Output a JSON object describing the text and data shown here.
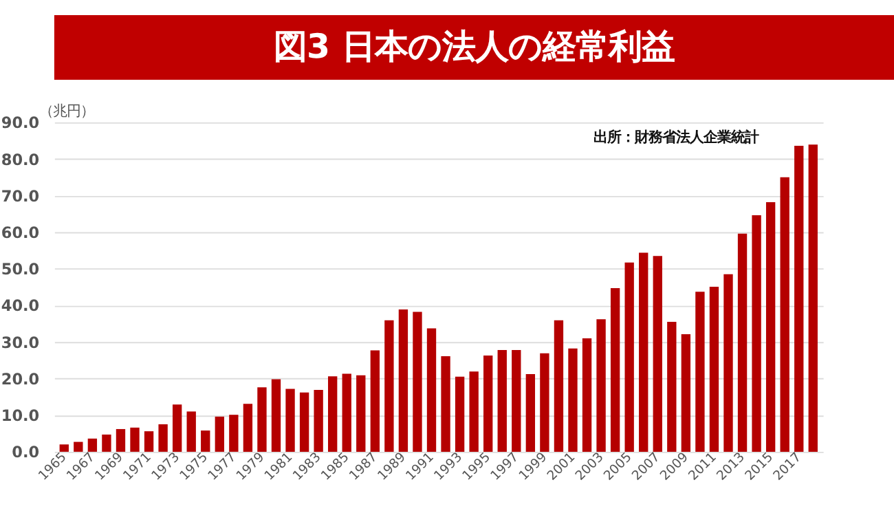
{
  "chart_data": {
    "type": "bar",
    "title": "図3 日本の法人の経常利益",
    "ylabel": "（兆円）",
    "annotations": [
      "出所：財務省法人企業統計"
    ],
    "categories": [
      "1965",
      null,
      "1967",
      null,
      "1969",
      null,
      "1971",
      null,
      "1973",
      null,
      "1975",
      null,
      "1977",
      null,
      "1979",
      null,
      "1981",
      null,
      "1983",
      null,
      "1985",
      null,
      "1987",
      null,
      "1989",
      null,
      "1991",
      null,
      "1993",
      null,
      "1995",
      null,
      "1997",
      null,
      "1999",
      null,
      "2001",
      null,
      "2003",
      null,
      "2005",
      null,
      "2007",
      null,
      "2009",
      null,
      "2011",
      null,
      "2013",
      null,
      "2015",
      null,
      "2017",
      null
    ],
    "series": [
      {
        "color": "#b50000",
        "values": [
          2.0,
          2.7,
          3.6,
          4.7,
          6.2,
          6.6,
          5.6,
          7.5,
          12.9,
          11.0,
          5.8,
          9.6,
          10.1,
          13.1,
          17.6,
          19.8,
          17.2,
          16.2,
          16.9,
          20.6,
          21.3,
          20.9,
          27.7,
          35.9,
          38.9,
          38.2,
          33.7,
          26.1,
          20.5,
          21.9,
          26.3,
          27.8,
          27.8,
          21.2,
          26.9,
          35.9,
          28.2,
          31.0,
          36.2,
          44.7,
          51.7,
          54.4,
          53.5,
          35.5,
          32.1,
          43.7,
          45.1,
          48.5,
          59.6,
          64.6,
          68.2,
          75.0,
          83.6,
          83.9
        ]
      }
    ],
    "ylim": [
      0,
      90
    ],
    "yticks": [
      {
        "value": 0,
        "label": "0.0"
      },
      {
        "value": 10,
        "label": "10.0"
      },
      {
        "value": 20,
        "label": "20.0"
      },
      {
        "value": 30,
        "label": "30.0"
      },
      {
        "value": 40,
        "label": "40.0"
      },
      {
        "value": 50,
        "label": "50.0"
      },
      {
        "value": 60,
        "label": "60.0"
      },
      {
        "value": 70,
        "label": "70.0"
      },
      {
        "value": 80,
        "label": "80.0"
      },
      {
        "value": 90,
        "label": "90.0"
      }
    ],
    "grid": "y",
    "legend": false
  }
}
